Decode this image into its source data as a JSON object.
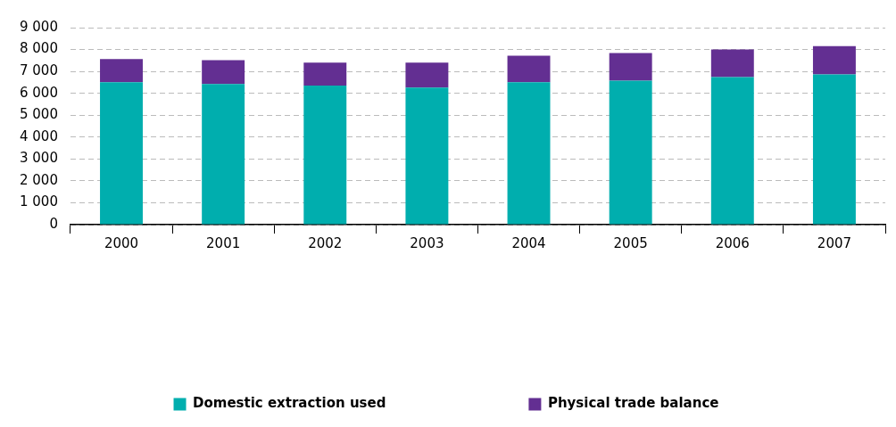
{
  "chart_data": {
    "type": "bar",
    "stacked": true,
    "categories": [
      "2000",
      "2001",
      "2002",
      "2003",
      "2004",
      "2005",
      "2006",
      "2007"
    ],
    "series": [
      {
        "name": "Domestic extraction used",
        "color": "#00aeae",
        "values": [
          6510,
          6420,
          6350,
          6260,
          6510,
          6580,
          6740,
          6860
        ]
      },
      {
        "name": "Physical trade balance",
        "color": "#632f92",
        "values": [
          1050,
          1090,
          1050,
          1140,
          1210,
          1260,
          1260,
          1300
        ]
      }
    ],
    "ylim": [
      0,
      9000
    ],
    "yticks": [
      {
        "value": 0,
        "label": "0"
      },
      {
        "value": 1000,
        "label": "1 000"
      },
      {
        "value": 2000,
        "label": "2 000"
      },
      {
        "value": 3000,
        "label": "3 000"
      },
      {
        "value": 4000,
        "label": "4 000"
      },
      {
        "value": 5000,
        "label": "5 000"
      },
      {
        "value": 6000,
        "label": "6 000"
      },
      {
        "value": 7000,
        "label": "7 000"
      },
      {
        "value": 8000,
        "label": "8 000"
      },
      {
        "value": 9000,
        "label": "9 000"
      }
    ],
    "grid": "y",
    "legend": "bottom"
  }
}
